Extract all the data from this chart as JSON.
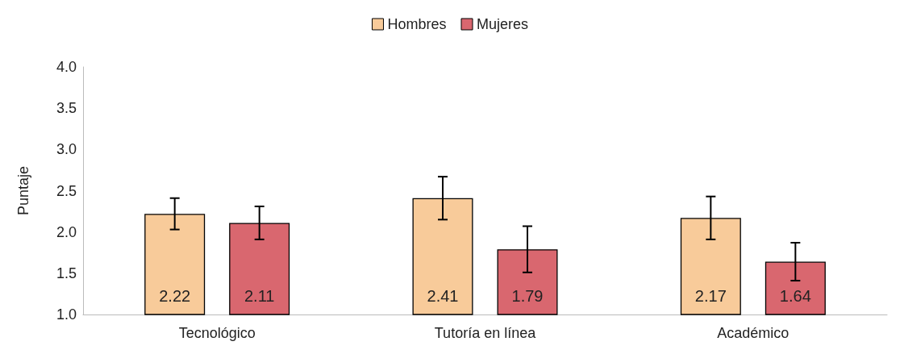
{
  "chart_data": {
    "type": "bar",
    "ylabel": "Puntaje",
    "categories": [
      "Tecnológico",
      "Tutoría en línea",
      "Académico"
    ],
    "series": [
      {
        "name": "Hombres",
        "color": "#f8cb9a",
        "values": [
          2.22,
          2.41,
          2.17
        ],
        "errors": [
          0.19,
          0.26,
          0.26
        ]
      },
      {
        "name": "Mujeres",
        "color": "#d9676f",
        "values": [
          2.11,
          1.79,
          1.64
        ],
        "errors": [
          0.2,
          0.28,
          0.23
        ]
      }
    ],
    "ylim": [
      1.0,
      4.0
    ],
    "yticks": [
      {
        "value": 1,
        "label": "1.0"
      },
      {
        "value": 1.5,
        "label": "1.5"
      },
      {
        "value": 2,
        "label": "2.0"
      },
      {
        "value": 2.5,
        "label": "2.5"
      },
      {
        "value": 3,
        "label": "3.0"
      },
      {
        "value": 3.5,
        "label": "3.5"
      },
      {
        "value": 4,
        "label": "4.0"
      }
    ],
    "grid": false,
    "legend": "top",
    "data_labels": true
  }
}
